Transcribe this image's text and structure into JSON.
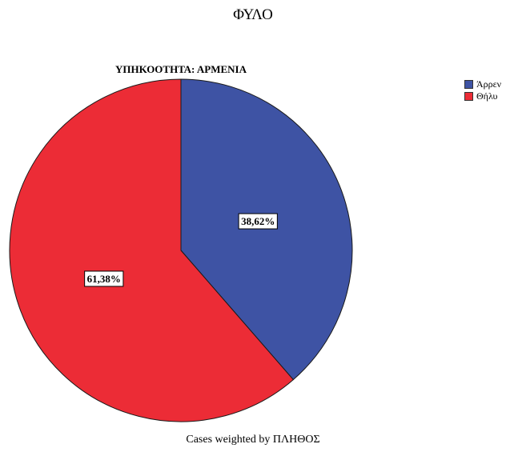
{
  "chart_data": {
    "type": "pie",
    "title": "ΦΥΛΟ",
    "subtitle": "ΥΠΗΚΟΟΤΗΤΑ: ΑΡΜΕΝΙΑ",
    "footer": "Cases weighted by ΠΛΗΘΟΣ",
    "categories": [
      "Άρρεν",
      "Θήλυ"
    ],
    "values": [
      38.62,
      61.38
    ],
    "data_labels": [
      "38,62%",
      "61,38%"
    ],
    "colors": [
      "#3e53a4",
      "#ec2c36"
    ],
    "legend": "top-right"
  }
}
